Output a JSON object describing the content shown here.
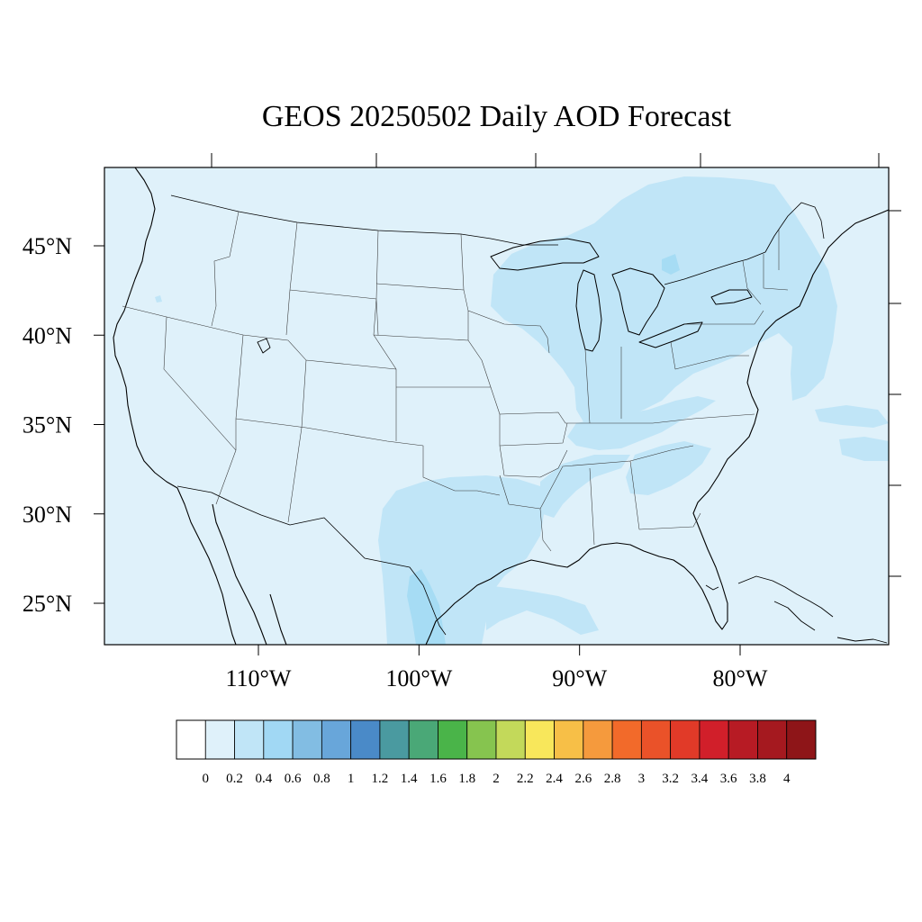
{
  "title": "GEOS 20250502 Daily AOD Forecast",
  "map": {
    "projection": "lon-lat",
    "lat_labels": [
      "45°N",
      "40°N",
      "35°N",
      "30°N",
      "25°N"
    ],
    "lat_values": [
      45,
      40,
      35,
      30,
      25
    ],
    "lon_labels": [
      "110°W",
      "100°W",
      "90°W",
      "80°W"
    ],
    "lon_values": [
      -110,
      -100,
      -90,
      -80
    ],
    "background_aod_color": "#dff1fa",
    "elevated_aod_color": "#c0e5f7",
    "peak_aod_color": "#a6dcf4",
    "land_line_color": "#000000"
  },
  "colorbar": {
    "labels": [
      "0",
      "0.2",
      "0.4",
      "0.6",
      "0.8",
      "1",
      "1.2",
      "1.4",
      "1.6",
      "1.8",
      "2",
      "2.2",
      "2.4",
      "2.6",
      "2.8",
      "3",
      "3.2",
      "3.4",
      "3.6",
      "3.8",
      "4"
    ],
    "colors": [
      "#ffffff",
      "#dff1fa",
      "#c0e5f7",
      "#a1d8f4",
      "#82bde3",
      "#68a6da",
      "#4a8ac8",
      "#4a9aa0",
      "#4aa877",
      "#4ab449",
      "#86c44f",
      "#c3d95a",
      "#f8e75b",
      "#f7bf47",
      "#f59a3d",
      "#f26a2a",
      "#ea5229",
      "#e13a28",
      "#d11f2a",
      "#b71b24",
      "#a5191f",
      "#8e1518"
    ]
  }
}
